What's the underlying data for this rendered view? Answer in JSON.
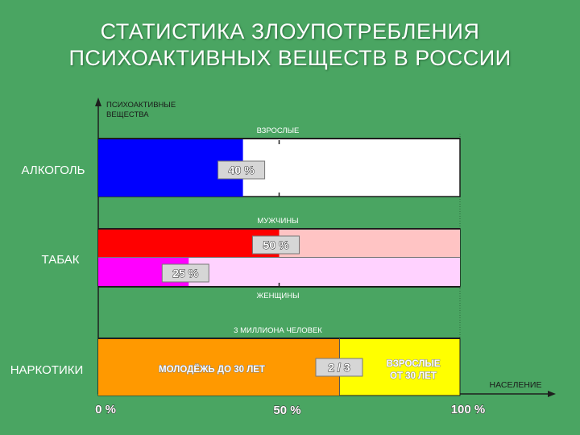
{
  "title_line1": "СТАТИСТИКА ЗЛОУПОТРЕБЛЕНИЯ",
  "title_line2": "ПСИХОАКТИВНЫХ ВЕЩЕСТВ В РОССИИ",
  "colors": {
    "background": "#4aa562",
    "alcohol": "#0000ff",
    "men": "#ff0000",
    "men_rest": "#ffc4c4",
    "women": "#ff00ff",
    "women_rest": "#ffd2ff",
    "youth": "#ff9900",
    "adults": "#ffff00",
    "label_box": "#d6d6d6"
  },
  "chart_data": {
    "type": "bar",
    "orientation": "horizontal",
    "stacked": true,
    "ylabel": "ПСИХОАКТИВНЫЕ ВЕЩЕСТВА",
    "xlabel": "НАСЕЛЕНИЕ",
    "xlim": [
      0,
      100
    ],
    "x_ticks": [
      "0 %",
      "50 %",
      "100 %"
    ],
    "categories": [
      "АЛКОГОЛЬ",
      "ТАБАК",
      "НАРКОТИКИ"
    ],
    "bars": [
      {
        "category": "АЛКОГОЛЬ",
        "group": "ВЗРОСЛЫЕ",
        "value": 40,
        "label": "40 %"
      },
      {
        "category": "ТАБАК",
        "group": "МУЖЧИНЫ",
        "value": 50,
        "label": "50 %"
      },
      {
        "category": "ТАБАК",
        "group": "ЖЕНЩИНЫ",
        "value": 25,
        "label": "25 %"
      },
      {
        "category": "НАРКОТИКИ",
        "group": "3 МИЛЛИОНА ЧЕЛОВЕК",
        "value": 66.7,
        "label": "2 / 3",
        "segment_labels": [
          "МОЛОДЁЖЬ ДО 30 ЛЕТ",
          "ВЗРОСЛЫЕ",
          "ОТ 30 ЛЕТ"
        ]
      }
    ]
  }
}
